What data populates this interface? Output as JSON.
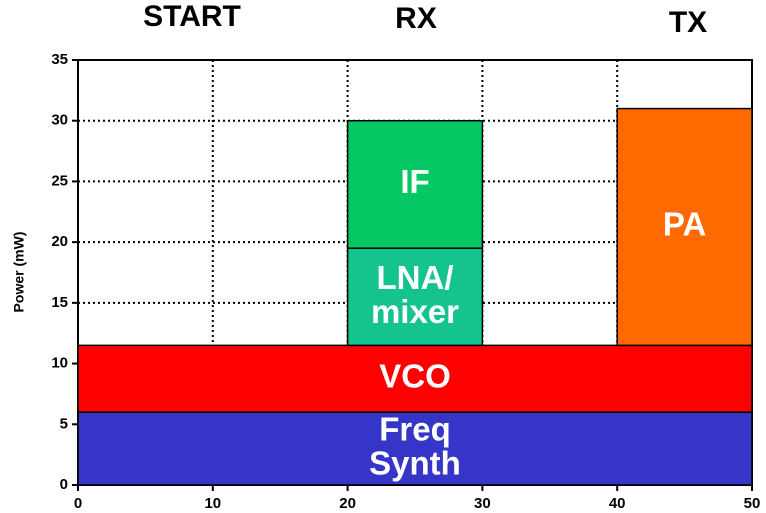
{
  "chart_data": {
    "type": "block",
    "annotations": [
      "START",
      "RX",
      "TX"
    ],
    "ylabel": "Power (mW)",
    "series": [
      {
        "name": "Freq Synth",
        "color": "#3535c8",
        "x": [
          0,
          50
        ],
        "value": 6
      },
      {
        "name": "VCO",
        "color": "#ff0000",
        "x": [
          0,
          50
        ],
        "value": 5.5
      },
      {
        "name": "LNA/ mixer",
        "color": "#14c38e",
        "x": [
          20,
          30
        ],
        "value": 8
      },
      {
        "name": "IF",
        "color": "#05c865",
        "x": [
          20,
          30
        ],
        "value": 10.5
      },
      {
        "name": "PA",
        "color": "#ff6a00",
        "x": [
          40,
          50
        ],
        "value": 19.5
      }
    ],
    "xlim": [
      0,
      50
    ],
    "xticks": [
      0,
      10,
      20,
      30,
      40,
      50
    ],
    "ylim": [
      0,
      35
    ],
    "yticks": [
      0,
      5,
      10,
      15,
      20,
      25,
      30,
      35
    ],
    "grid": true
  }
}
